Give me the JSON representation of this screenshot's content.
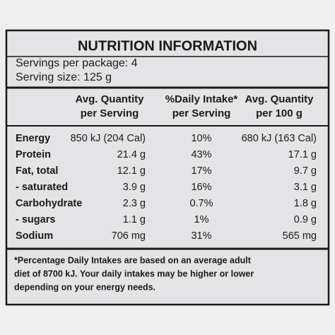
{
  "title": "NUTRITION INFORMATION",
  "servings": [
    "Servings per package: 4",
    "Serving size: 125 g"
  ],
  "table": {
    "headers": [
      [
        "Avg. Quantity",
        "per Serving"
      ],
      [
        "%Daily Intake*",
        "per Serving"
      ],
      [
        "Avg. Quantity",
        "per 100 g"
      ]
    ],
    "rows": [
      [
        "Energy",
        "850 kJ (204 Cal)",
        "10%",
        "680 kJ (163 Cal)"
      ],
      [
        "Protein",
        "21.4 g",
        "43%",
        "17.1 g"
      ],
      [
        "Fat, total",
        "12.1 g",
        "17%",
        "9.7 g"
      ],
      [
        "- saturated",
        "3.9 g",
        "16%",
        "3.1 g"
      ],
      [
        "Carbohydrate",
        "2.3 g",
        "0.7%",
        "1.8 g"
      ],
      [
        "- sugars",
        "1.1 g",
        "1%",
        "0.9 g"
      ],
      [
        "Sodium",
        "706 mg",
        "31%",
        "565 mg"
      ]
    ]
  },
  "footnote": [
    "*Percentage Daily Intakes are based on an average adult",
    "diet of 8700 kJ. Your daily intakes may be higher or lower",
    "depending on your energy needs."
  ]
}
